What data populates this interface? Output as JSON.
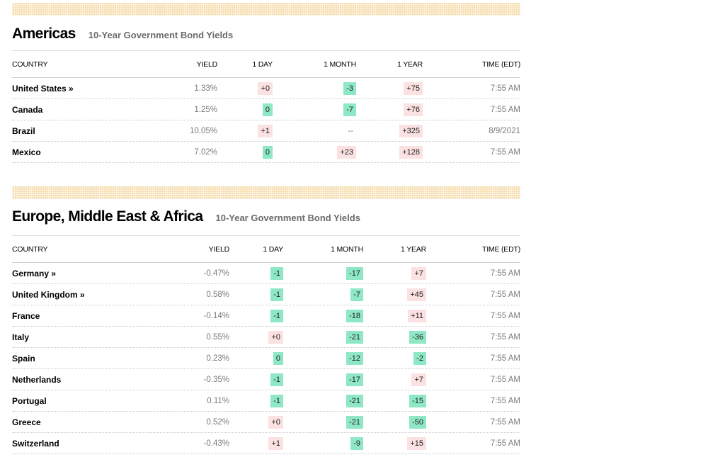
{
  "colors": {
    "positive_change_bg": "#fbe1e1",
    "negative_change_bg": "#8ee8c5",
    "divider": "#f6deb0"
  },
  "americas": {
    "title": "Americas",
    "subtitle": "10-Year Government Bond Yields",
    "headers": {
      "country": "COUNTRY",
      "yield": "YIELD",
      "d1": "1 DAY",
      "m1": "1 MONTH",
      "y1": "1 YEAR",
      "time": "TIME (EDT)"
    },
    "rows": [
      {
        "country": "United States »",
        "yield": "1.33%",
        "d1": "+0",
        "m1": "-3",
        "y1": "+75",
        "time": "7:55 AM"
      },
      {
        "country": "Canada",
        "yield": "1.25%",
        "d1": "0",
        "m1": "-7",
        "y1": "+76",
        "time": "7:55 AM"
      },
      {
        "country": "Brazil",
        "yield": "10.05%",
        "d1": "+1",
        "m1": "--",
        "y1": "+325",
        "time": "8/9/2021"
      },
      {
        "country": "Mexico",
        "yield": "7.02%",
        "d1": "0",
        "m1": "+23",
        "y1": "+128",
        "time": "7:55 AM"
      }
    ]
  },
  "emea": {
    "title": "Europe, Middle East & Africa",
    "subtitle": "10-Year Government Bond Yields",
    "headers": {
      "country": "COUNTRY",
      "yield": "YIELD",
      "d1": "1 DAY",
      "m1": "1 MONTH",
      "y1": "1 YEAR",
      "time": "TIME (EDT)"
    },
    "rows": [
      {
        "country": "Germany »",
        "yield": "-0.47%",
        "d1": "-1",
        "m1": "-17",
        "y1": "+7",
        "time": "7:55 AM"
      },
      {
        "country": "United Kingdom »",
        "yield": "0.58%",
        "d1": "-1",
        "m1": "-7",
        "y1": "+45",
        "time": "7:55 AM"
      },
      {
        "country": "France",
        "yield": "-0.14%",
        "d1": "-1",
        "m1": "-18",
        "y1": "+11",
        "time": "7:55 AM"
      },
      {
        "country": "Italy",
        "yield": "0.55%",
        "d1": "+0",
        "m1": "-21",
        "y1": "-36",
        "time": "7:55 AM"
      },
      {
        "country": "Spain",
        "yield": "0.23%",
        "d1": "0",
        "m1": "-12",
        "y1": "-2",
        "time": "7:55 AM"
      },
      {
        "country": "Netherlands",
        "yield": "-0.35%",
        "d1": "-1",
        "m1": "-17",
        "y1": "+7",
        "time": "7:55 AM"
      },
      {
        "country": "Portugal",
        "yield": "0.11%",
        "d1": "-1",
        "m1": "-21",
        "y1": "-15",
        "time": "7:55 AM"
      },
      {
        "country": "Greece",
        "yield": "0.52%",
        "d1": "+0",
        "m1": "-21",
        "y1": "-50",
        "time": "7:55 AM"
      },
      {
        "country": "Switzerland",
        "yield": "-0.43%",
        "d1": "+1",
        "m1": "-9",
        "y1": "+15",
        "time": "7:55 AM"
      }
    ]
  }
}
